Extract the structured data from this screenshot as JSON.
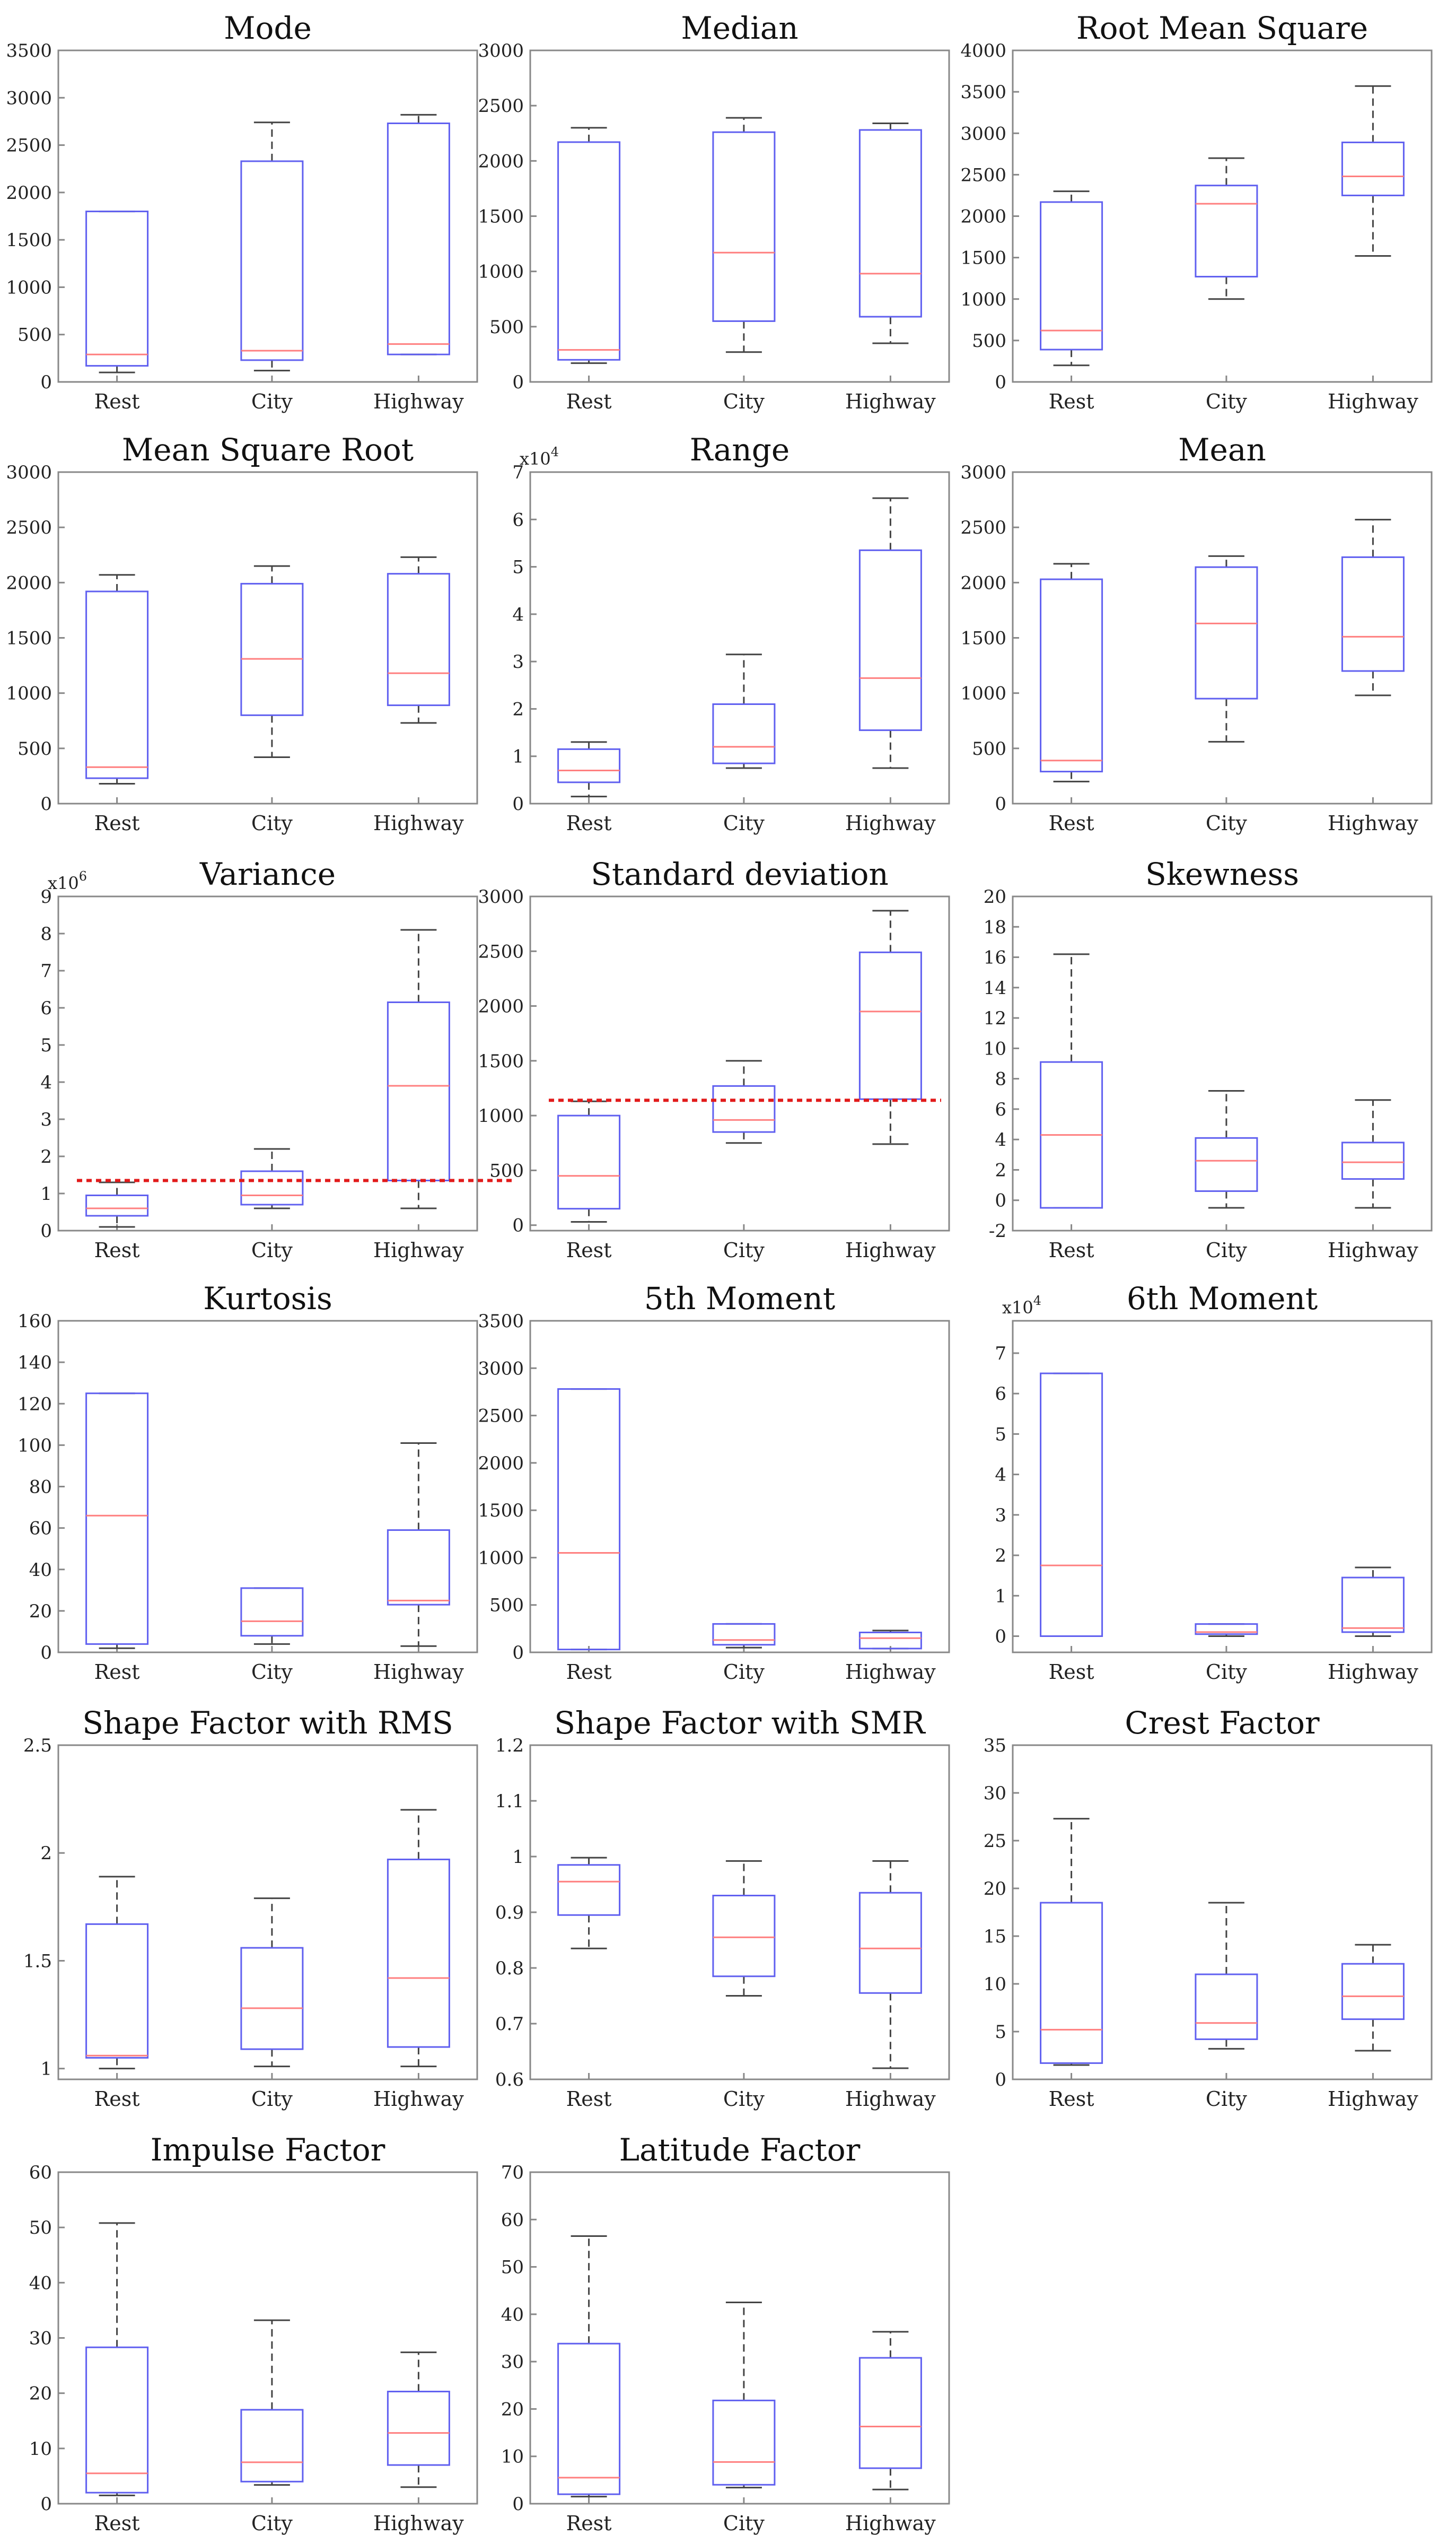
{
  "chart_data": [
    {
      "type": "box",
      "title": "Mode",
      "categories": [
        "Rest",
        "City",
        "Highway"
      ],
      "ylim": [
        0,
        3500
      ],
      "yticks": [
        0,
        500,
        1000,
        1500,
        2000,
        2500,
        3000,
        3500
      ],
      "ytick_labels": [
        "0",
        "500",
        "1000",
        "1500",
        "2000",
        "2500",
        "3000",
        "3500"
      ],
      "boxes": [
        {
          "min": 100,
          "q1": 170,
          "median": 290,
          "q3": 1800,
          "max": 1800
        },
        {
          "min": 120,
          "q1": 230,
          "median": 330,
          "q3": 2330,
          "max": 2740
        },
        {
          "min": 290,
          "q1": 290,
          "median": 400,
          "q3": 2730,
          "max": 2820
        }
      ]
    },
    {
      "type": "box",
      "title": "Median",
      "categories": [
        "Rest",
        "City",
        "Highway"
      ],
      "ylim": [
        0,
        3000
      ],
      "yticks": [
        0,
        500,
        1000,
        1500,
        2000,
        2500,
        3000
      ],
      "ytick_labels": [
        "0",
        "500",
        "1000",
        "1500",
        "2000",
        "2500",
        "3000"
      ],
      "boxes": [
        {
          "min": 170,
          "q1": 200,
          "median": 290,
          "q3": 2170,
          "max": 2300
        },
        {
          "min": 270,
          "q1": 550,
          "median": 1170,
          "q3": 2260,
          "max": 2390
        },
        {
          "min": 350,
          "q1": 590,
          "median": 980,
          "q3": 2280,
          "max": 2340
        }
      ]
    },
    {
      "type": "box",
      "title": "Root Mean Square",
      "categories": [
        "Rest",
        "City",
        "Highway"
      ],
      "ylim": [
        0,
        4000
      ],
      "yticks": [
        0,
        500,
        1000,
        1500,
        2000,
        2500,
        3000,
        3500,
        4000
      ],
      "ytick_labels": [
        "0",
        "500",
        "1000",
        "1500",
        "2000",
        "2500",
        "3000",
        "3500",
        "4000"
      ],
      "boxes": [
        {
          "min": 200,
          "q1": 390,
          "median": 620,
          "q3": 2170,
          "max": 2300
        },
        {
          "min": 1000,
          "q1": 1270,
          "median": 2150,
          "q3": 2370,
          "max": 2700
        },
        {
          "min": 1520,
          "q1": 2250,
          "median": 2480,
          "q3": 2890,
          "max": 3570
        }
      ]
    },
    {
      "type": "box",
      "title": "Mean Square Root",
      "categories": [
        "Rest",
        "City",
        "Highway"
      ],
      "ylim": [
        0,
        3000
      ],
      "yticks": [
        0,
        500,
        1000,
        1500,
        2000,
        2500,
        3000
      ],
      "ytick_labels": [
        "0",
        "500",
        "1000",
        "1500",
        "2000",
        "2500",
        "3000"
      ],
      "boxes": [
        {
          "min": 180,
          "q1": 230,
          "median": 330,
          "q3": 1920,
          "max": 2070
        },
        {
          "min": 420,
          "q1": 800,
          "median": 1310,
          "q3": 1990,
          "max": 2150
        },
        {
          "min": 730,
          "q1": 890,
          "median": 1180,
          "q3": 2080,
          "max": 2230
        }
      ]
    },
    {
      "type": "box",
      "title": "Range",
      "categories": [
        "Rest",
        "City",
        "Highway"
      ],
      "ylim": [
        0,
        7
      ],
      "yticks": [
        0,
        1,
        2,
        3,
        4,
        5,
        6,
        7
      ],
      "ytick_labels": [
        "0",
        "1",
        "2",
        "3",
        "4",
        "5",
        "6",
        "7"
      ],
      "exponent": "x10",
      "exponent_power": "4",
      "boxes": [
        {
          "min": 0.15,
          "q1": 0.45,
          "median": 0.7,
          "q3": 1.15,
          "max": 1.3
        },
        {
          "min": 0.75,
          "q1": 0.85,
          "median": 1.2,
          "q3": 2.1,
          "max": 3.15
        },
        {
          "min": 0.75,
          "q1": 1.55,
          "median": 2.65,
          "q3": 5.35,
          "max": 6.45
        }
      ]
    },
    {
      "type": "box",
      "title": "Mean",
      "categories": [
        "Rest",
        "City",
        "Highway"
      ],
      "ylim": [
        0,
        3000
      ],
      "yticks": [
        0,
        500,
        1000,
        1500,
        2000,
        2500,
        3000
      ],
      "ytick_labels": [
        "0",
        "500",
        "1000",
        "1500",
        "2000",
        "2500",
        "3000"
      ],
      "boxes": [
        {
          "min": 200,
          "q1": 290,
          "median": 390,
          "q3": 2030,
          "max": 2170
        },
        {
          "min": 560,
          "q1": 950,
          "median": 1630,
          "q3": 2140,
          "max": 2240
        },
        {
          "min": 980,
          "q1": 1200,
          "median": 1510,
          "q3": 2230,
          "max": 2570
        }
      ]
    },
    {
      "type": "box",
      "title": "Variance",
      "categories": [
        "Rest",
        "City",
        "Highway"
      ],
      "ylim": [
        0,
        9
      ],
      "yticks": [
        0,
        1,
        2,
        3,
        4,
        5,
        6,
        7,
        8,
        9
      ],
      "ytick_labels": [
        "0",
        "1",
        "2",
        "3",
        "4",
        "5",
        "6",
        "7",
        "8",
        "9"
      ],
      "exponent": "x10",
      "exponent_power": "6",
      "reference_line": 1.35,
      "boxes": [
        {
          "min": 0.1,
          "q1": 0.4,
          "median": 0.6,
          "q3": 0.95,
          "max": 1.3
        },
        {
          "min": 0.6,
          "q1": 0.7,
          "median": 0.95,
          "q3": 1.6,
          "max": 2.2
        },
        {
          "min": 0.6,
          "q1": 1.35,
          "median": 3.9,
          "q3": 6.15,
          "max": 8.1
        }
      ]
    },
    {
      "type": "box",
      "title": "Standard deviation",
      "categories": [
        "Rest",
        "City",
        "Highway"
      ],
      "ylim": [
        -50,
        3000
      ],
      "yticks": [
        0,
        500,
        1000,
        1500,
        2000,
        2500,
        3000
      ],
      "ytick_labels": [
        "0",
        "500",
        "1000",
        "1500",
        "2000",
        "2500",
        "3000"
      ],
      "reference_line": 1140,
      "boxes": [
        {
          "min": 30,
          "q1": 150,
          "median": 450,
          "q3": 1000,
          "max": 1130
        },
        {
          "min": 750,
          "q1": 850,
          "median": 960,
          "q3": 1270,
          "max": 1500
        },
        {
          "min": 740,
          "q1": 1150,
          "median": 1950,
          "q3": 2490,
          "max": 2870
        }
      ]
    },
    {
      "type": "box",
      "title": "Skewness",
      "categories": [
        "Rest",
        "City",
        "Highway"
      ],
      "ylim": [
        -2,
        20
      ],
      "yticks": [
        -2,
        0,
        2,
        4,
        6,
        8,
        10,
        12,
        14,
        16,
        18,
        20
      ],
      "ytick_labels": [
        "-2",
        "0",
        "2",
        "4",
        "6",
        "8",
        "10",
        "12",
        "14",
        "16",
        "18",
        "20"
      ],
      "boxes": [
        {
          "min": -0.5,
          "q1": -0.5,
          "median": 4.3,
          "q3": 9.1,
          "max": 16.2
        },
        {
          "min": -0.5,
          "q1": 0.6,
          "median": 2.6,
          "q3": 4.1,
          "max": 7.2
        },
        {
          "min": -0.5,
          "q1": 1.4,
          "median": 2.5,
          "q3": 3.8,
          "max": 6.6
        }
      ]
    },
    {
      "type": "box",
      "title": "Kurtosis",
      "categories": [
        "Rest",
        "City",
        "Highway"
      ],
      "ylim": [
        0,
        160
      ],
      "yticks": [
        0,
        20,
        40,
        60,
        80,
        100,
        120,
        140,
        160
      ],
      "ytick_labels": [
        "0",
        "20",
        "40",
        "60",
        "80",
        "100",
        "120",
        "140",
        "160"
      ],
      "boxes": [
        {
          "min": 2,
          "q1": 4,
          "median": 66,
          "q3": 125,
          "max": 125
        },
        {
          "min": 4,
          "q1": 8,
          "median": 15,
          "q3": 31,
          "max": 31
        },
        {
          "min": 3,
          "q1": 23,
          "median": 25,
          "q3": 59,
          "max": 101
        }
      ]
    },
    {
      "type": "box",
      "title": "5th Moment",
      "categories": [
        "Rest",
        "City",
        "Highway"
      ],
      "ylim": [
        0,
        3500
      ],
      "yticks": [
        0,
        500,
        1000,
        1500,
        2000,
        2500,
        3000,
        3500
      ],
      "ytick_labels": [
        "0",
        "500",
        "1000",
        "1500",
        "2000",
        "2500",
        "3000",
        "3500"
      ],
      "boxes": [
        {
          "min": 30,
          "q1": 30,
          "median": 1050,
          "q3": 2780,
          "max": 2780
        },
        {
          "min": 50,
          "q1": 80,
          "median": 130,
          "q3": 300,
          "max": 300
        },
        {
          "min": 40,
          "q1": 40,
          "median": 150,
          "q3": 210,
          "max": 230
        }
      ]
    },
    {
      "type": "box",
      "title": "6th Moment",
      "categories": [
        "Rest",
        "City",
        "Highway"
      ],
      "ylim": [
        -0.4,
        7.8
      ],
      "yticks": [
        0,
        1,
        2,
        3,
        4,
        5,
        6,
        7
      ],
      "ytick_labels": [
        "0",
        "1",
        "2",
        "3",
        "4",
        "5",
        "6",
        "7"
      ],
      "exponent": "x10",
      "exponent_power": "4",
      "boxes": [
        {
          "min": 0,
          "q1": 0,
          "median": 1.75,
          "q3": 6.5,
          "max": 6.5
        },
        {
          "min": 0,
          "q1": 0.05,
          "median": 0.1,
          "q3": 0.3,
          "max": 0.3
        },
        {
          "min": 0,
          "q1": 0.1,
          "median": 0.2,
          "q3": 1.45,
          "max": 1.7
        }
      ]
    },
    {
      "type": "box",
      "title": "Shape Factor with RMS",
      "categories": [
        "Rest",
        "City",
        "Highway"
      ],
      "ylim": [
        0.95,
        2.5
      ],
      "yticks": [
        1,
        1.5,
        2,
        2.5
      ],
      "ytick_labels": [
        "1",
        "1.5",
        "2",
        "2.5"
      ],
      "boxes": [
        {
          "min": 1.0,
          "q1": 1.05,
          "median": 1.06,
          "q3": 1.67,
          "max": 1.89
        },
        {
          "min": 1.01,
          "q1": 1.09,
          "median": 1.28,
          "q3": 1.56,
          "max": 1.79
        },
        {
          "min": 1.01,
          "q1": 1.1,
          "median": 1.42,
          "q3": 1.97,
          "max": 2.2
        }
      ]
    },
    {
      "type": "box",
      "title": "Shape Factor with SMR",
      "categories": [
        "Rest",
        "City",
        "Highway"
      ],
      "ylim": [
        0.6,
        1.2
      ],
      "yticks": [
        0.6,
        0.7,
        0.8,
        0.9,
        1,
        1.1,
        1.2
      ],
      "ytick_labels": [
        "0.6",
        "0.7",
        "0.8",
        "0.9",
        "1",
        "1.1",
        "1.2"
      ],
      "boxes": [
        {
          "min": 0.835,
          "q1": 0.895,
          "median": 0.955,
          "q3": 0.985,
          "max": 0.998
        },
        {
          "min": 0.75,
          "q1": 0.785,
          "median": 0.855,
          "q3": 0.93,
          "max": 0.992
        },
        {
          "min": 0.62,
          "q1": 0.755,
          "median": 0.835,
          "q3": 0.935,
          "max": 0.992
        }
      ]
    },
    {
      "type": "box",
      "title": "Crest Factor",
      "categories": [
        "Rest",
        "City",
        "Highway"
      ],
      "ylim": [
        0,
        35
      ],
      "yticks": [
        0,
        5,
        10,
        15,
        20,
        25,
        30,
        35
      ],
      "ytick_labels": [
        "0",
        "5",
        "10",
        "15",
        "20",
        "25",
        "30",
        "35"
      ],
      "boxes": [
        {
          "min": 1.5,
          "q1": 1.7,
          "median": 5.2,
          "q3": 18.5,
          "max": 27.3
        },
        {
          "min": 3.2,
          "q1": 4.2,
          "median": 5.9,
          "q3": 11,
          "max": 18.5
        },
        {
          "min": 3,
          "q1": 6.3,
          "median": 8.7,
          "q3": 12.1,
          "max": 14.1
        }
      ]
    },
    {
      "type": "box",
      "title": "Impulse Factor",
      "categories": [
        "Rest",
        "City",
        "Highway"
      ],
      "ylim": [
        0,
        60
      ],
      "yticks": [
        0,
        10,
        20,
        30,
        40,
        50,
        60
      ],
      "ytick_labels": [
        "0",
        "10",
        "20",
        "30",
        "40",
        "50",
        "60"
      ],
      "boxes": [
        {
          "min": 1.5,
          "q1": 2,
          "median": 5.5,
          "q3": 28.3,
          "max": 50.8
        },
        {
          "min": 3.4,
          "q1": 4,
          "median": 7.5,
          "q3": 17,
          "max": 33.2
        },
        {
          "min": 3,
          "q1": 7,
          "median": 12.8,
          "q3": 20.3,
          "max": 27.4
        }
      ]
    },
    {
      "type": "box",
      "title": "Latitude Factor",
      "categories": [
        "Rest",
        "City",
        "Highway"
      ],
      "ylim": [
        0,
        70
      ],
      "yticks": [
        0,
        10,
        20,
        30,
        40,
        50,
        60,
        70
      ],
      "ytick_labels": [
        "0",
        "10",
        "20",
        "30",
        "40",
        "50",
        "60",
        "70"
      ],
      "boxes": [
        {
          "min": 1.5,
          "q1": 2,
          "median": 5.5,
          "q3": 33.8,
          "max": 56.5
        },
        {
          "min": 3.4,
          "q1": 4,
          "median": 8.8,
          "q3": 21.8,
          "max": 42.5
        },
        {
          "min": 3,
          "q1": 7.5,
          "median": 16.3,
          "q3": 30.8,
          "max": 36.3
        }
      ]
    }
  ]
}
